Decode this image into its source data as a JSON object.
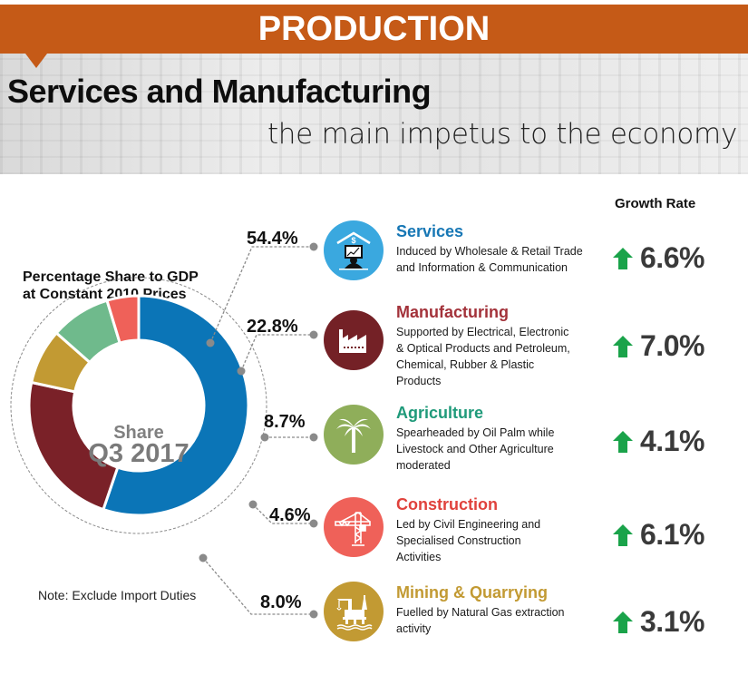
{
  "banner": {
    "title": "PRODUCTION"
  },
  "hero": {
    "title": "Services and Manufacturing",
    "subtitle": "the main impetus to the economy"
  },
  "donut_panel": {
    "title_line1": "Percentage Share to GDP",
    "title_line2": "at Constant 2010 Prices",
    "center_label": "Share",
    "center_period": "Q3 2017",
    "note": "Note: Exclude Import Duties"
  },
  "growth_header": "Growth Rate",
  "colors": {
    "banner": "#c55a17",
    "growth_arrow": "#1aa34a",
    "services": "#0b75b7",
    "manufacturing": "#7a2128",
    "agriculture": "#6fba8c",
    "construction": "#ef6159",
    "mining": "#c29a33"
  },
  "sectors": [
    {
      "name": "Services",
      "share": "54.4%",
      "description_lines": [
        "Induced by Wholesale & Retail Trade",
        "and Information & Communication"
      ],
      "growth": "6.6%",
      "growth_direction": "up",
      "icon": "services-computer-icon",
      "name_color": "#1777b5",
      "icon_bg": "#3aa8df"
    },
    {
      "name": "Manufacturing",
      "share": "22.8%",
      "description_lines": [
        "Supported by Electrical, Electronic",
        "& Optical Products and Petroleum,",
        "Chemical, Rubber & Plastic",
        "Products"
      ],
      "growth": "7.0%",
      "growth_direction": "up",
      "icon": "factory-icon",
      "name_color": "#a3323a",
      "icon_bg": "#742126"
    },
    {
      "name": "Agriculture",
      "share": "8.7%",
      "description_lines": [
        "Spearheaded by Oil Palm while",
        "Livestock and Other Agriculture",
        "moderated"
      ],
      "growth": "4.1%",
      "growth_direction": "up",
      "icon": "palm-tree-icon",
      "name_color": "#1f9a7a",
      "icon_bg": "#8fae5a"
    },
    {
      "name": "Construction",
      "share": "4.6%",
      "description_lines": [
        "Led by Civil Engineering and",
        "Specialised Construction",
        "Activities"
      ],
      "growth": "6.1%",
      "growth_direction": "up",
      "icon": "crane-icon",
      "name_color": "#e0423c",
      "icon_bg": "#ef6159"
    },
    {
      "name": "Mining & Quarrying",
      "share": "8.0%",
      "description_lines": [
        "Fuelled by Natural Gas extraction",
        "activity"
      ],
      "growth": "3.1%",
      "growth_direction": "up",
      "icon": "oil-rig-icon",
      "name_color": "#c29a33",
      "icon_bg": "#c29a33"
    }
  ],
  "chart_data": {
    "type": "pie",
    "title": "Percentage Share to GDP at Constant 2010 Prices",
    "subtitle": "Share Q3 2017",
    "donut": true,
    "categories": [
      "Services",
      "Manufacturing",
      "Mining & Quarrying",
      "Agriculture",
      "Construction"
    ],
    "values": [
      54.4,
      22.8,
      8.0,
      8.7,
      4.6
    ],
    "colors": [
      "#0b75b7",
      "#7a2128",
      "#c29a33",
      "#6fba8c",
      "#ef6159"
    ],
    "start": "top",
    "direction": "clockwise",
    "legend": "right",
    "note": "Exclude Import Duties"
  }
}
